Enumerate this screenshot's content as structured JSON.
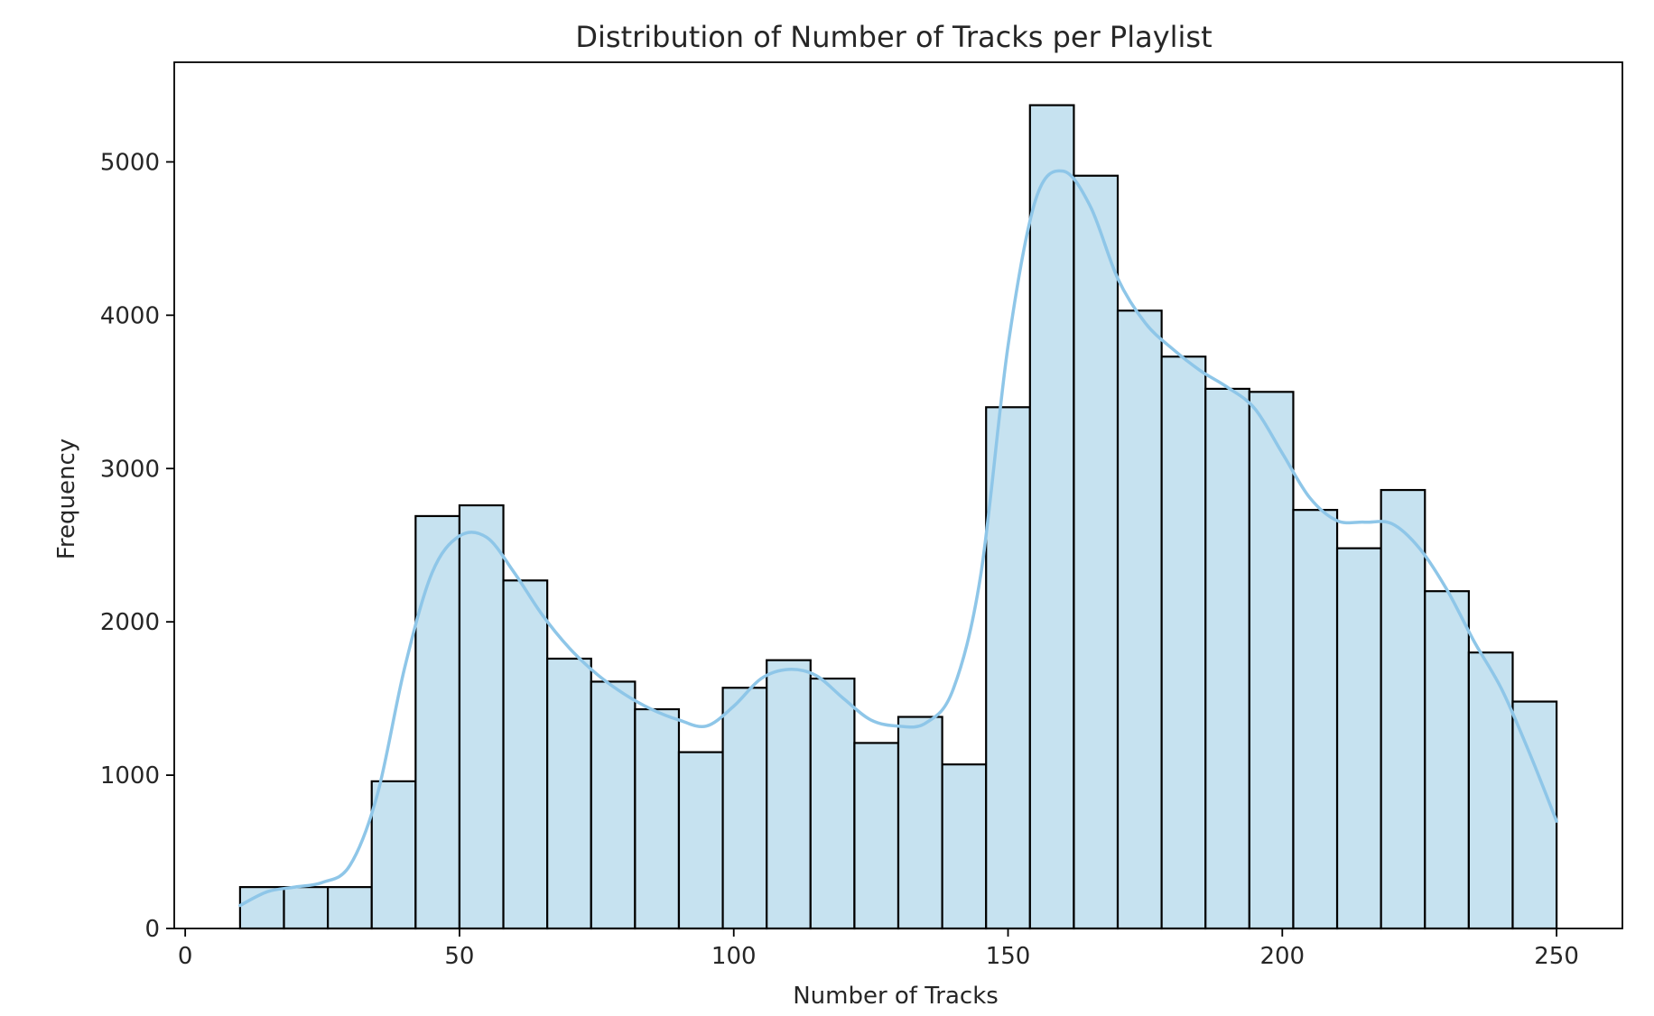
{
  "chart_data": {
    "type": "bar",
    "title": "Distribution of Number of Tracks per Playlist",
    "xlabel": "Number of Tracks",
    "ylabel": "Frequency",
    "xlim": [
      -2,
      262
    ],
    "ylim": [
      0,
      5650
    ],
    "xticks": [
      0,
      50,
      100,
      150,
      200,
      250
    ],
    "yticks": [
      0,
      1000,
      2000,
      3000,
      4000,
      5000
    ],
    "bins": {
      "start": 10,
      "width": 8,
      "count": 30
    },
    "values": [
      270,
      270,
      270,
      960,
      2690,
      2760,
      2270,
      1760,
      1610,
      1430,
      1150,
      1570,
      1750,
      1630,
      1210,
      1380,
      1070,
      3400,
      5370,
      4910,
      4030,
      3730,
      3520,
      3500,
      2730,
      2480,
      2860,
      2200,
      1800,
      1480
    ],
    "kde": {
      "x": [
        10,
        15,
        20,
        25,
        30,
        35,
        40,
        45,
        50,
        55,
        60,
        65,
        70,
        75,
        80,
        85,
        90,
        95,
        100,
        105,
        110,
        115,
        120,
        125,
        130,
        135,
        140,
        145,
        150,
        155,
        160,
        165,
        170,
        175,
        180,
        185,
        190,
        195,
        200,
        205,
        210,
        215,
        220,
        225,
        230,
        235,
        240,
        245,
        250
      ],
      "y": [
        150,
        240,
        270,
        300,
        410,
        870,
        1700,
        2320,
        2560,
        2550,
        2320,
        2050,
        1830,
        1660,
        1530,
        1430,
        1360,
        1320,
        1450,
        1630,
        1690,
        1650,
        1500,
        1360,
        1320,
        1340,
        1560,
        2300,
        3800,
        4750,
        4940,
        4710,
        4240,
        3950,
        3780,
        3640,
        3530,
        3390,
        3100,
        2810,
        2660,
        2650,
        2640,
        2480,
        2210,
        1870,
        1560,
        1150,
        700
      ],
      "color": "#8ec6e8"
    },
    "bar_color": "#c6e2f0",
    "edge_color": "#000000",
    "grid": false
  }
}
